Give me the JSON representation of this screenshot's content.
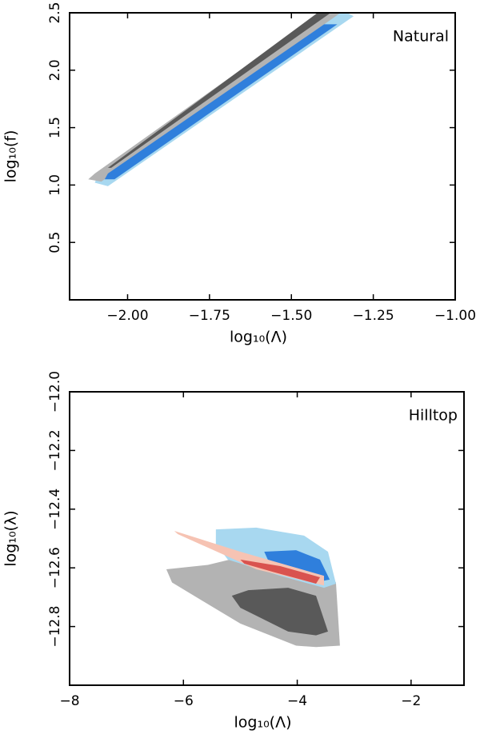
{
  "chart_data": [
    {
      "type": "contour",
      "annotation": "Natural",
      "xlabel": "log₁₀(Λ)",
      "ylabel": "log₁₀(f)",
      "xlim": [
        -2.177,
        -1.0
      ],
      "xticks": [
        {
          "value": -2.0,
          "label": "−2.00"
        },
        {
          "value": -1.75,
          "label": "−1.75"
        },
        {
          "value": -1.5,
          "label": "−1.50"
        },
        {
          "value": -1.25,
          "label": "−1.25"
        },
        {
          "value": -1.0,
          "label": "−1.00"
        }
      ],
      "ylim": [
        0,
        2.5
      ],
      "yticks": [
        0.5,
        {
          "value": 1,
          "label": "1.0"
        },
        1.5,
        {
          "value": 2,
          "label": "2.0"
        },
        2.5
      ],
      "series": [
        {
          "color": "#a8d8f0",
          "x": [
            -2.1,
            -2.06,
            -1.31,
            -1.33,
            -1.4,
            -2.09
          ],
          "y": [
            1.02,
            0.99,
            2.47,
            2.5,
            2.5,
            1.09
          ]
        },
        {
          "color": "#b3b3b3",
          "x": [
            -2.12,
            -2.08,
            -1.35,
            -1.41,
            -2.1
          ],
          "y": [
            1.05,
            1.03,
            2.5,
            2.5,
            1.1
          ]
        },
        {
          "color": "#2f7fdc",
          "x": [
            -2.07,
            -2.04,
            -1.36,
            -1.4,
            -2.06
          ],
          "y": [
            1.05,
            1.05,
            2.4,
            2.4,
            1.1
          ]
        },
        {
          "color": "#595959",
          "x": [
            -2.05,
            -1.38,
            -1.42,
            -2.06
          ],
          "y": [
            1.15,
            2.5,
            2.5,
            1.15
          ]
        }
      ]
    },
    {
      "type": "contour",
      "annotation": "Hilltop",
      "xlabel": "log₁₀(Λ)",
      "ylabel": "log₁₀(λ)",
      "xlim": [
        -8,
        -1.07
      ],
      "xticks": [
        {
          "value": -8,
          "label": "−8"
        },
        {
          "value": -6,
          "label": "−6"
        },
        {
          "value": -4,
          "label": "−4"
        },
        {
          "value": -2,
          "label": "−2"
        }
      ],
      "ylim": [
        -13.0,
        -12.0
      ],
      "yticks": [
        {
          "value": -12.8,
          "label": "−12.8"
        },
        {
          "value": -12.6,
          "label": "−12.6"
        },
        {
          "value": -12.4,
          "label": "−12.4"
        },
        {
          "value": -12.2,
          "label": "−12.2"
        },
        {
          "value": -12.0,
          "label": "−12.0"
        }
      ],
      "series": [
        {
          "color": "#b3b3b3",
          "x": [
            -6.3,
            -5.57,
            -5.15,
            -4.44,
            -3.6,
            -3.32,
            -3.25,
            -3.67,
            -4.02,
            -5.0,
            -6.2
          ],
          "y": [
            -12.605,
            -12.59,
            -12.57,
            -12.57,
            -12.58,
            -12.65,
            -12.865,
            -12.87,
            -12.865,
            -12.79,
            -12.65
          ]
        },
        {
          "color": "#595959",
          "x": [
            -5.15,
            -4.86,
            -4.16,
            -3.67,
            -3.46,
            -3.67,
            -4.16,
            -5.0
          ],
          "y": [
            -12.695,
            -12.676,
            -12.668,
            -12.695,
            -12.817,
            -12.83,
            -12.817,
            -12.736
          ]
        },
        {
          "color": "#a8d8f0",
          "x": [
            -5.43,
            -4.72,
            -3.88,
            -3.46,
            -3.32,
            -3.53,
            -4.3,
            -5.22,
            -5.43
          ],
          "y": [
            -12.469,
            -12.463,
            -12.49,
            -12.545,
            -12.654,
            -12.668,
            -12.627,
            -12.572,
            -12.518
          ]
        },
        {
          "color": "#2f7fdc",
          "x": [
            -4.58,
            -4.02,
            -3.6,
            -3.43,
            -3.67,
            -4.44
          ],
          "y": [
            -12.545,
            -12.54,
            -12.572,
            -12.64,
            -12.649,
            -12.605
          ]
        },
        {
          "color": "#f6c3b3",
          "x": [
            -6.16,
            -5.0,
            -3.53,
            -3.53,
            -4.72,
            -6.1
          ],
          "y": [
            -12.474,
            -12.545,
            -12.627,
            -12.66,
            -12.605,
            -12.485
          ]
        },
        {
          "color": "#d9534f",
          "x": [
            -5.0,
            -4.3,
            -3.6,
            -3.67,
            -4.44,
            -4.93
          ],
          "y": [
            -12.572,
            -12.594,
            -12.632,
            -12.654,
            -12.613,
            -12.586
          ]
        }
      ]
    }
  ]
}
